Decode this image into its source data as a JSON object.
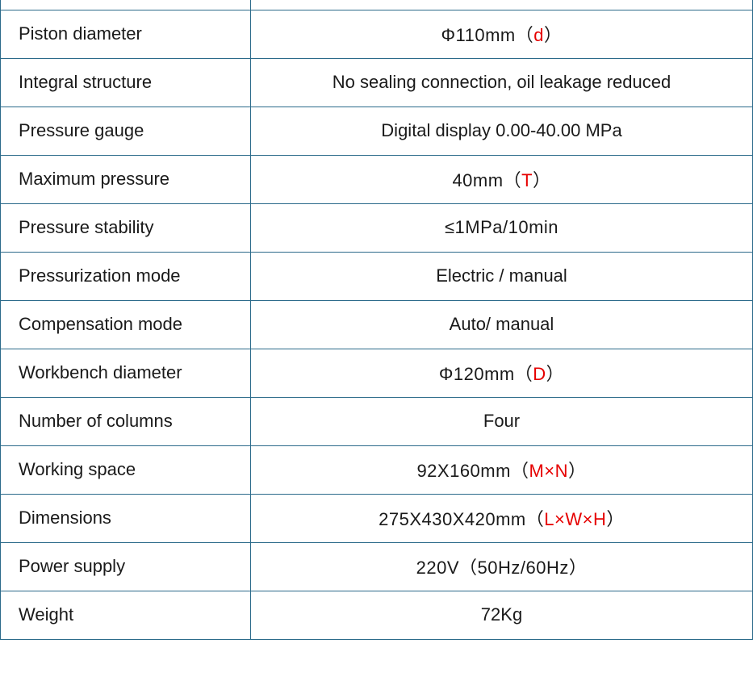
{
  "table": {
    "border_color": "#2b6a8a",
    "label_fontsize": 22,
    "value_fontsize": 22,
    "red_color": "#e60000",
    "rows": [
      {
        "label": "Piston diameter",
        "value_parts": [
          {
            "text": "Φ110mm",
            "red": false,
            "mono": true
          },
          {
            "text": "（",
            "red": false,
            "mono": true
          },
          {
            "text": "d",
            "red": true,
            "mono": true
          },
          {
            "text": "）",
            "red": false,
            "mono": true
          }
        ]
      },
      {
        "label": "Integral structure",
        "value_parts": [
          {
            "text": "No sealing connection, oil leakage reduced",
            "red": false,
            "mono": false
          }
        ]
      },
      {
        "label": "Pressure gauge",
        "value_parts": [
          {
            "text": "Digital display 0.00-40.00 MPa",
            "red": false,
            "mono": false
          }
        ]
      },
      {
        "label": "Maximum pressure",
        "value_parts": [
          {
            "text": "40mm",
            "red": false,
            "mono": true
          },
          {
            "text": "（",
            "red": false,
            "mono": true
          },
          {
            "text": "T",
            "red": true,
            "mono": true
          },
          {
            "text": "）",
            "red": false,
            "mono": true
          }
        ]
      },
      {
        "label": "Pressure stability",
        "value_parts": [
          {
            "text": "≤1MPa/10min",
            "red": false,
            "mono": true
          }
        ]
      },
      {
        "label": "Pressurization mode",
        "value_parts": [
          {
            "text": "Electric / manual",
            "red": false,
            "mono": false
          }
        ]
      },
      {
        "label": "Compensation mode",
        "value_parts": [
          {
            "text": "Auto/ manual",
            "red": false,
            "mono": false
          }
        ]
      },
      {
        "label": "Workbench diameter",
        "value_parts": [
          {
            "text": "Φ120mm",
            "red": false,
            "mono": true
          },
          {
            "text": "（",
            "red": false,
            "mono": true
          },
          {
            "text": "D",
            "red": true,
            "mono": true
          },
          {
            "text": "）",
            "red": false,
            "mono": true
          }
        ]
      },
      {
        "label": "Number of columns",
        "value_parts": [
          {
            "text": "Four",
            "red": false,
            "mono": false
          }
        ]
      },
      {
        "label": "Working space",
        "value_parts": [
          {
            "text": "92X160mm",
            "red": false,
            "mono": true
          },
          {
            "text": "（",
            "red": false,
            "mono": true
          },
          {
            "text": "M×N",
            "red": true,
            "mono": true
          },
          {
            "text": "）",
            "red": false,
            "mono": true
          }
        ]
      },
      {
        "label": "Dimensions",
        "value_parts": [
          {
            "text": "275X430X420mm",
            "red": false,
            "mono": true
          },
          {
            "text": "（",
            "red": false,
            "mono": true
          },
          {
            "text": "L×W×H",
            "red": true,
            "mono": true
          },
          {
            "text": "）",
            "red": false,
            "mono": true
          }
        ]
      },
      {
        "label": "Power supply",
        "value_parts": [
          {
            "text": "220V（50Hz/60Hz）",
            "red": false,
            "mono": true
          }
        ]
      },
      {
        "label": "Weight",
        "value_parts": [
          {
            "text": "72Kg",
            "red": false,
            "mono": false
          }
        ]
      }
    ]
  }
}
